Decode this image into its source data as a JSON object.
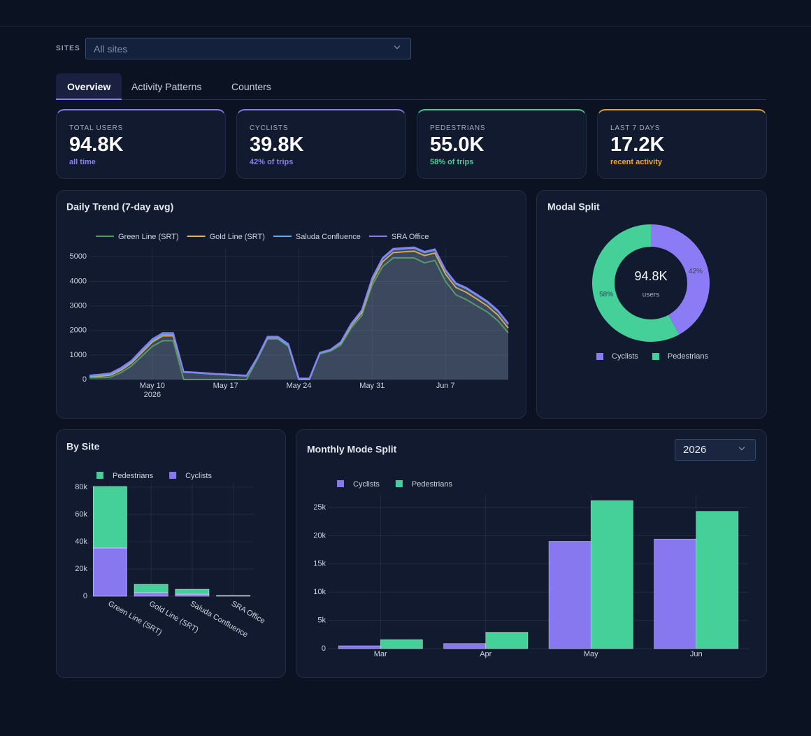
{
  "header": {
    "sites_label": "SITES",
    "sites_placeholder": "All sites"
  },
  "tabs": [
    "Overview",
    "Activity Patterns",
    "Counters"
  ],
  "active_tab": 0,
  "kpis": [
    {
      "label": "TOTAL USERS",
      "value": "94.8K",
      "note": "all time",
      "color": "#8b7cf6"
    },
    {
      "label": "CYCLISTS",
      "value": "39.8K",
      "note": "42% of trips",
      "color": "#8b7cf6"
    },
    {
      "label": "PEDESTRIANS",
      "value": "55.0K",
      "note": "58% of trips",
      "color": "#45d09a"
    },
    {
      "label": "LAST 7 DAYS",
      "value": "17.2K",
      "note": "recent activity",
      "color": "#f5a524"
    }
  ],
  "chart_data": [
    {
      "type": "area",
      "title": "Daily Trend (7-day avg)",
      "stacked": true,
      "grid": true,
      "x": [
        "2026-05-04",
        "2026-05-05",
        "2026-05-06",
        "2026-05-07",
        "2026-05-08",
        "2026-05-09",
        "2026-05-10",
        "2026-05-11",
        "2026-05-12",
        "2026-05-13",
        "2026-05-14",
        "2026-05-15",
        "2026-05-16",
        "2026-05-17",
        "2026-05-18",
        "2026-05-19",
        "2026-05-20",
        "2026-05-21",
        "2026-05-22",
        "2026-05-23",
        "2026-05-24",
        "2026-05-25",
        "2026-05-26",
        "2026-05-27",
        "2026-05-28",
        "2026-05-29",
        "2026-05-30",
        "2026-05-31",
        "2026-06-01",
        "2026-06-02",
        "2026-06-03",
        "2026-06-04",
        "2026-06-05",
        "2026-06-06",
        "2026-06-07",
        "2026-06-08",
        "2026-06-09",
        "2026-06-10",
        "2026-06-11",
        "2026-06-12",
        "2026-06-13"
      ],
      "series": [
        {
          "name": "Green Line (SRT)",
          "color": "#4f9d5d",
          "values": [
            80,
            80,
            100,
            280,
            550,
            950,
            1350,
            1580,
            1580,
            0,
            0,
            0,
            0,
            0,
            0,
            0,
            800,
            1650,
            1650,
            1350,
            0,
            0,
            1050,
            1150,
            1400,
            2100,
            2600,
            3850,
            4600,
            4950,
            4950,
            4950,
            4750,
            4850,
            4000,
            3450,
            3250,
            3000,
            2750,
            2400,
            1900
          ]
        },
        {
          "name": "Gold Line (SRT)",
          "color": "#e7b04a",
          "values": [
            40,
            60,
            80,
            100,
            120,
            150,
            180,
            200,
            200,
            300,
            280,
            250,
            220,
            200,
            170,
            150,
            50,
            50,
            50,
            50,
            0,
            0,
            30,
            50,
            80,
            100,
            120,
            150,
            200,
            220,
            250,
            280,
            300,
            300,
            300,
            300,
            300,
            280,
            250,
            230,
            200
          ]
        },
        {
          "name": "Saluda Confluence",
          "color": "#5aa9f5",
          "values": [
            20,
            30,
            40,
            50,
            50,
            60,
            60,
            60,
            60,
            0,
            0,
            0,
            0,
            0,
            0,
            0,
            0,
            0,
            0,
            0,
            0,
            0,
            0,
            0,
            20,
            40,
            60,
            100,
            120,
            120,
            120,
            120,
            120,
            120,
            130,
            140,
            150,
            150,
            150,
            150,
            150
          ]
        },
        {
          "name": "SRA Office",
          "color": "#8b7cf6",
          "values": [
            30,
            40,
            40,
            50,
            50,
            60,
            60,
            60,
            60,
            20,
            20,
            20,
            20,
            20,
            20,
            20,
            30,
            50,
            50,
            50,
            50,
            50,
            20,
            20,
            30,
            40,
            40,
            40,
            40,
            40,
            40,
            40,
            40,
            40,
            40,
            40,
            40,
            40,
            40,
            40,
            40
          ]
        }
      ],
      "xlim": [
        "2026-05-04",
        "2026-06-13"
      ],
      "xticks": [
        {
          "value": "2026-05-10",
          "label": "May 10",
          "year": "2026"
        },
        {
          "value": "2026-05-17",
          "label": "May 17"
        },
        {
          "value": "2026-05-24",
          "label": "May 24"
        },
        {
          "value": "2026-05-31",
          "label": "May 31"
        },
        {
          "value": "2026-06-07",
          "label": "Jun 7"
        }
      ],
      "ylim": [
        0,
        5350
      ],
      "yticks": [
        0,
        1000,
        2000,
        3000,
        4000,
        5000
      ]
    },
    {
      "type": "pie",
      "title": "Modal Split",
      "categories": [
        "Cyclists",
        "Pedestrians"
      ],
      "values": [
        42,
        58
      ],
      "value_labels": [
        "42%",
        "58%"
      ],
      "colors": [
        "#8b7cf6",
        "#45d09a"
      ],
      "center_value": "94.8K",
      "center_label": "users"
    },
    {
      "type": "bar",
      "title": "By Site",
      "stacked": true,
      "grid": true,
      "categories": [
        "Green Line (SRT)",
        "Gold Line (SRT)",
        "Saluda Confluence",
        "SRA Office"
      ],
      "series": [
        {
          "name": "Pedestrians",
          "color": "#45d09a",
          "values": [
            45100,
            6100,
            3600,
            200
          ]
        },
        {
          "name": "Cyclists",
          "color": "#8878f0",
          "values": [
            35400,
            2600,
            1500,
            300
          ]
        }
      ],
      "ylim": [
        0,
        83600
      ],
      "yticks": [
        0,
        {
          "value": 20000,
          "label": "20k"
        },
        {
          "value": 40000,
          "label": "40k"
        },
        {
          "value": 60000,
          "label": "60k"
        },
        {
          "value": 80000,
          "label": "80k"
        }
      ]
    },
    {
      "type": "bar",
      "title": "Monthly Mode Split",
      "year_select": "2026",
      "grid": true,
      "categories": [
        "Mar",
        "Apr",
        "May",
        "Jun"
      ],
      "series": [
        {
          "name": "Cyclists",
          "color": "#8878f0",
          "values": [
            500,
            900,
            19000,
            19400
          ]
        },
        {
          "name": "Pedestrians",
          "color": "#45d09a",
          "values": [
            1600,
            2900,
            26200,
            24300
          ]
        }
      ],
      "ylim": [
        0,
        27350
      ],
      "yticks": [
        0,
        {
          "value": 5000,
          "label": "5k"
        },
        {
          "value": 10000,
          "label": "10k"
        },
        {
          "value": 15000,
          "label": "15k"
        },
        {
          "value": 20000,
          "label": "20k"
        },
        {
          "value": 25000,
          "label": "25k"
        }
      ]
    }
  ]
}
